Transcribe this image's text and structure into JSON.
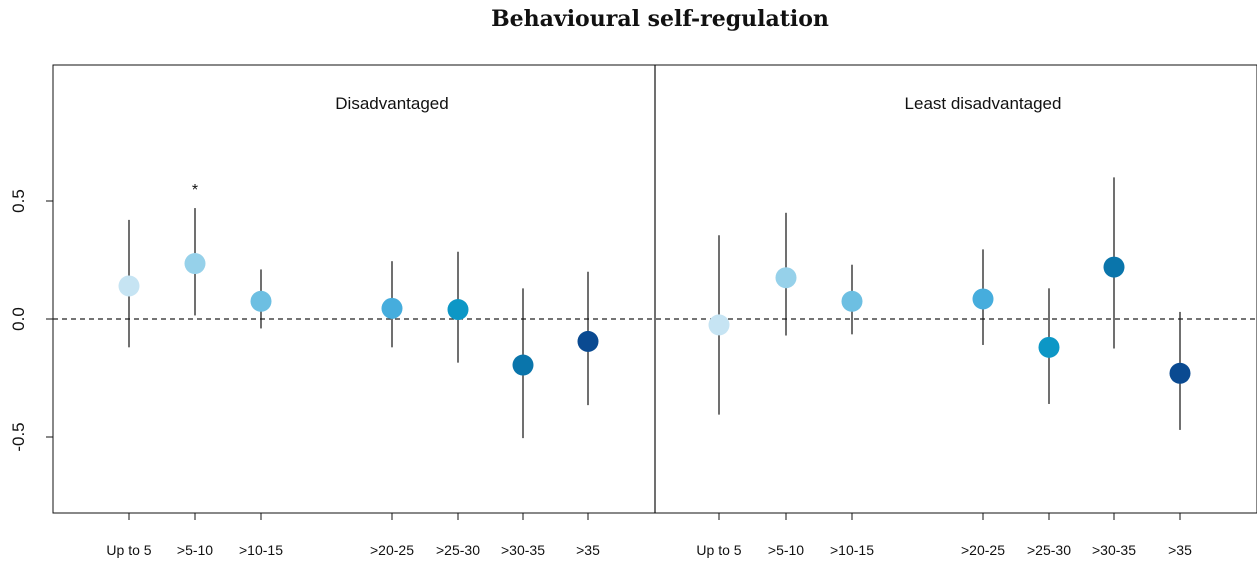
{
  "chart_data": {
    "type": "scatter",
    "title": "Behavioural self-regulation",
    "xlabel": "",
    "ylabel": "",
    "ylim": [
      -0.82,
      1.06
    ],
    "yticks": [
      -0.5,
      0.0,
      0.5
    ],
    "ytick_labels": [
      "-0.5",
      "0.0",
      "0.5"
    ],
    "reference_line": 0.0,
    "grid": false,
    "categories": [
      "Up to 5",
      ">5-10",
      ">10-15",
      ">20-25",
      ">25-30",
      ">30-35",
      ">35"
    ],
    "category_colors": [
      "#c6e4f3",
      "#96d1ea",
      "#6dbfe2",
      "#46addd",
      "#0d97c6",
      "#0a75ab",
      "#0a4a91"
    ],
    "panels": [
      {
        "label": "Disadvantaged",
        "points": [
          {
            "category": "Up to 5",
            "estimate": 0.14,
            "lower": -0.12,
            "upper": 0.42
          },
          {
            "category": ">5-10",
            "estimate": 0.235,
            "lower": 0.015,
            "upper": 0.47,
            "annotation": "*"
          },
          {
            "category": ">10-15",
            "estimate": 0.075,
            "lower": -0.04,
            "upper": 0.21
          },
          {
            "category": ">20-25",
            "estimate": 0.045,
            "lower": -0.12,
            "upper": 0.245
          },
          {
            "category": ">25-30",
            "estimate": 0.04,
            "lower": -0.185,
            "upper": 0.285
          },
          {
            "category": ">30-35",
            "estimate": -0.195,
            "lower": -0.505,
            "upper": 0.13
          },
          {
            "category": ">35",
            "estimate": -0.095,
            "lower": -0.365,
            "upper": 0.2
          }
        ]
      },
      {
        "label": "Least disadvantaged",
        "points": [
          {
            "category": "Up to 5",
            "estimate": -0.025,
            "lower": -0.405,
            "upper": 0.355
          },
          {
            "category": ">5-10",
            "estimate": 0.175,
            "lower": -0.07,
            "upper": 0.45
          },
          {
            "category": ">10-15",
            "estimate": 0.075,
            "lower": -0.065,
            "upper": 0.23
          },
          {
            "category": ">20-25",
            "estimate": 0.085,
            "lower": -0.11,
            "upper": 0.295
          },
          {
            "category": ">25-30",
            "estimate": -0.12,
            "lower": -0.36,
            "upper": 0.13
          },
          {
            "category": ">30-35",
            "estimate": 0.22,
            "lower": -0.125,
            "upper": 0.6
          },
          {
            "category": ">35",
            "estimate": -0.23,
            "lower": -0.47,
            "upper": 0.03
          }
        ]
      }
    ]
  }
}
